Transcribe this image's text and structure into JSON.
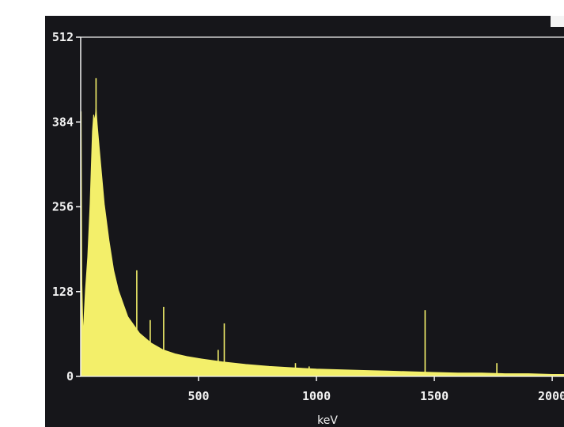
{
  "chart_data": {
    "type": "area",
    "title": "",
    "xlabel": "keV",
    "ylabel": "",
    "xlim": [
      0,
      2050
    ],
    "ylim": [
      0,
      512
    ],
    "x_ticks": [
      "500",
      "1000",
      "1500",
      "2000"
    ],
    "y_ticks": [
      "0",
      "128",
      "256",
      "384",
      "512"
    ],
    "grid": false,
    "colors": {
      "fill": "#f3ef6a",
      "background": "#16161a",
      "axis": "#f2f2f2"
    },
    "series": [
      {
        "values": [
          [
            0,
            0
          ],
          [
            2,
            400
          ],
          [
            5,
            140
          ],
          [
            10,
            60
          ],
          [
            20,
            130
          ],
          [
            30,
            180
          ],
          [
            40,
            260
          ],
          [
            50,
            370
          ],
          [
            55,
            395
          ],
          [
            60,
            385
          ],
          [
            65,
            405
          ],
          [
            70,
            380
          ],
          [
            80,
            340
          ],
          [
            100,
            260
          ],
          [
            120,
            205
          ],
          [
            140,
            160
          ],
          [
            160,
            130
          ],
          [
            180,
            110
          ],
          [
            200,
            90
          ],
          [
            250,
            65
          ],
          [
            300,
            50
          ],
          [
            350,
            40
          ],
          [
            400,
            34
          ],
          [
            450,
            30
          ],
          [
            500,
            27
          ],
          [
            600,
            22
          ],
          [
            700,
            18
          ],
          [
            800,
            15
          ],
          [
            900,
            13
          ],
          [
            1000,
            11
          ],
          [
            1100,
            10
          ],
          [
            1200,
            9
          ],
          [
            1300,
            8
          ],
          [
            1400,
            7
          ],
          [
            1500,
            6
          ],
          [
            1600,
            5
          ],
          [
            1700,
            5
          ],
          [
            1800,
            4
          ],
          [
            1900,
            4
          ],
          [
            2000,
            3
          ],
          [
            2050,
            3
          ]
        ]
      }
    ],
    "peaks": [
      [
        65,
        450
      ],
      [
        238,
        160
      ],
      [
        295,
        85
      ],
      [
        340,
        35
      ],
      [
        352,
        105
      ],
      [
        583,
        40
      ],
      [
        609,
        80
      ],
      [
        911,
        20
      ],
      [
        969,
        15
      ],
      [
        1120,
        8
      ],
      [
        1461,
        100
      ],
      [
        1765,
        20
      ]
    ]
  }
}
